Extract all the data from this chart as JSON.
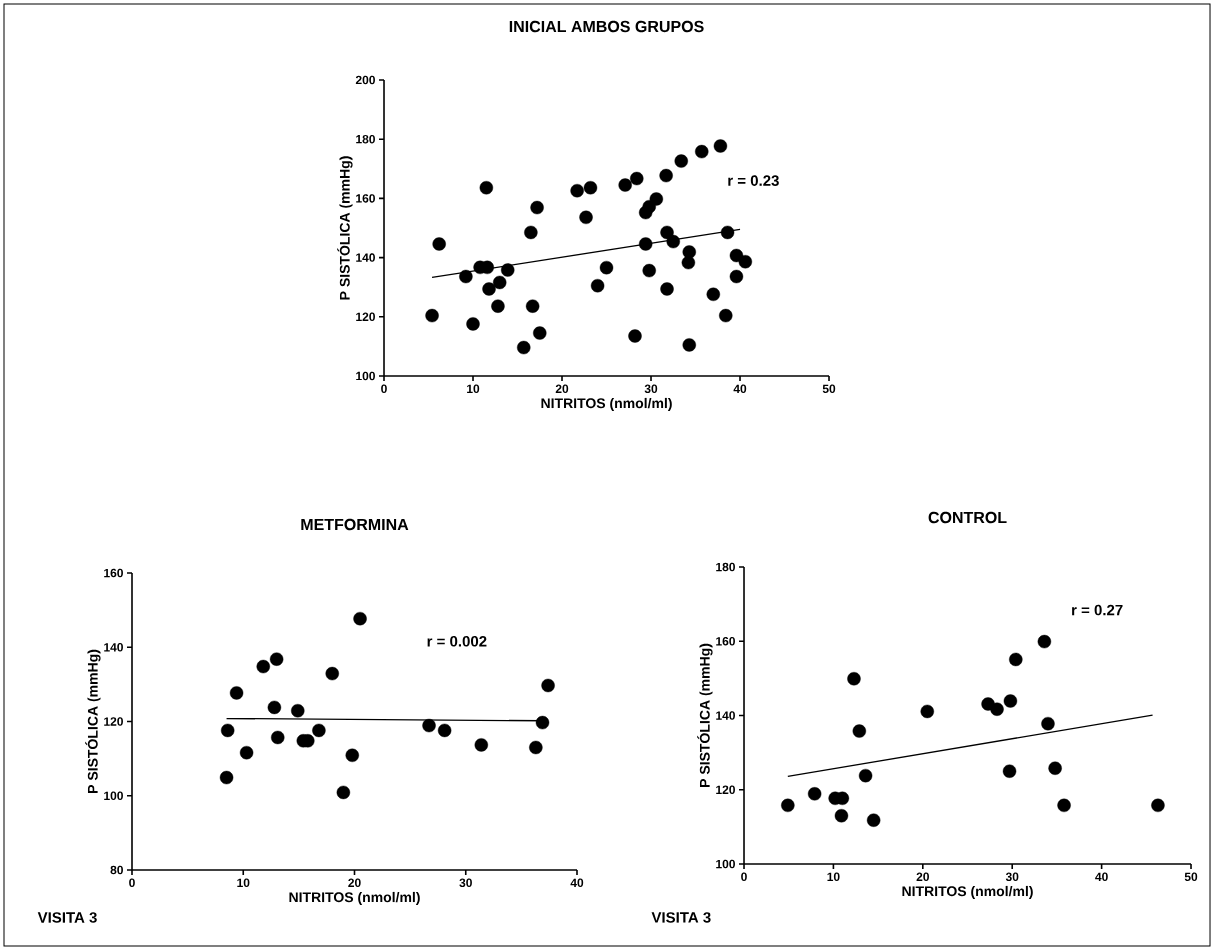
{
  "chart_data": [
    {
      "type": "scatter",
      "title": "INICIAL AMBOS GRUPOS",
      "xlabel": "NITRITOS (nmol/ml)",
      "ylabel": "P SISTÓLICA (mmHg)",
      "xlim": [
        0,
        50
      ],
      "ylim": [
        100,
        200
      ],
      "xticks": [
        0,
        10,
        20,
        30,
        40,
        50
      ],
      "yticks": [
        100,
        120,
        140,
        160,
        180,
        200
      ],
      "annotations": [
        "r = 0.23"
      ],
      "series": [
        {
          "type": "scatter",
          "marker": "circle",
          "color": "#000000",
          "x": [
            5.4,
            6.2,
            9.2,
            10.0,
            10.8,
            11.6,
            11.5,
            11.8,
            12.8,
            13.0,
            13.9,
            15.7,
            16.5,
            16.7,
            17.2,
            17.5,
            21.7,
            23.2,
            22.7,
            24.0,
            25.0,
            27.1,
            28.4,
            28.2,
            29.4,
            29.8,
            30.6,
            29.4,
            29.8,
            31.7,
            31.8,
            32.5,
            31.8,
            33.4,
            34.3,
            34.2,
            34.3,
            35.7,
            37.0,
            37.8,
            38.6,
            38.4,
            39.6,
            40.6,
            39.6
          ],
          "values": [
            120.4,
            144.6,
            133.6,
            117.6,
            136.7,
            136.7,
            163.6,
            129.4,
            123.6,
            131.6,
            135.8,
            109.6,
            148.5,
            123.6,
            156.9,
            114.5,
            162.6,
            163.6,
            153.6,
            130.5,
            136.6,
            164.5,
            166.7,
            113.5,
            155.2,
            157.2,
            159.8,
            144.6,
            135.6,
            167.7,
            148.5,
            145.4,
            129.4,
            172.6,
            141.9,
            138.3,
            110.5,
            175.8,
            127.6,
            177.7,
            148.5,
            120.4,
            140.7,
            138.6,
            133.6
          ]
        },
        {
          "type": "line",
          "color": "#000000",
          "x": [
            5.4,
            40.0
          ],
          "values": [
            133.3,
            149.5
          ]
        }
      ]
    },
    {
      "type": "scatter",
      "title": "METFORMINA",
      "xlabel": "NITRITOS (nmol/ml)",
      "ylabel": "P SISTÓLICA (mmHg)",
      "xlim": [
        0,
        40
      ],
      "ylim": [
        80,
        160
      ],
      "xticks": [
        0,
        10,
        20,
        30,
        40
      ],
      "yticks": [
        80,
        100,
        120,
        140,
        160
      ],
      "annotations": [
        "r = 0.002",
        "VISITA 3"
      ],
      "series": [
        {
          "type": "scatter",
          "marker": "circle",
          "color": "#000000",
          "x": [
            8.5,
            8.6,
            9.4,
            10.3,
            11.8,
            13.0,
            12.8,
            13.1,
            14.9,
            15.4,
            15.8,
            16.8,
            18.0,
            19.0,
            19.8,
            20.5,
            26.7,
            28.1,
            31.4,
            36.3,
            36.9,
            37.4
          ],
          "values": [
            104.9,
            117.6,
            127.7,
            111.6,
            134.8,
            136.8,
            123.8,
            115.7,
            122.9,
            114.8,
            114.8,
            117.6,
            132.9,
            100.9,
            110.9,
            147.7,
            118.9,
            117.6,
            113.7,
            113.0,
            119.7,
            129.7
          ]
        },
        {
          "type": "line",
          "color": "#000000",
          "x": [
            8.5,
            36.9
          ],
          "values": [
            120.8,
            120.2
          ]
        }
      ]
    },
    {
      "type": "scatter",
      "title": "CONTROL",
      "xlabel": "NITRITOS (nmol/ml)",
      "ylabel": "P SISTÓLICA (mmHg)",
      "xlim": [
        0,
        50
      ],
      "ylim": [
        100,
        180
      ],
      "xticks": [
        0,
        10,
        20,
        30,
        40,
        50
      ],
      "yticks": [
        100,
        120,
        140,
        160,
        180
      ],
      "annotations": [
        "r = 0.27",
        "VISITA 3"
      ],
      "series": [
        {
          "type": "scatter",
          "marker": "circle",
          "color": "#000000",
          "x": [
            4.9,
            7.9,
            10.2,
            11.0,
            10.9,
            12.3,
            12.9,
            13.6,
            14.5,
            20.5,
            27.3,
            28.3,
            29.8,
            29.7,
            30.4,
            33.6,
            34.0,
            34.8,
            35.8,
            46.3
          ],
          "values": [
            115.8,
            118.9,
            117.7,
            117.7,
            113.0,
            149.9,
            135.8,
            123.8,
            111.8,
            141.1,
            143.1,
            141.7,
            143.9,
            125.0,
            155.1,
            159.9,
            137.8,
            125.8,
            115.8,
            115.8
          ]
        },
        {
          "type": "line",
          "color": "#000000",
          "x": [
            4.9,
            45.7
          ],
          "values": [
            123.6,
            140.1
          ]
        }
      ]
    }
  ]
}
